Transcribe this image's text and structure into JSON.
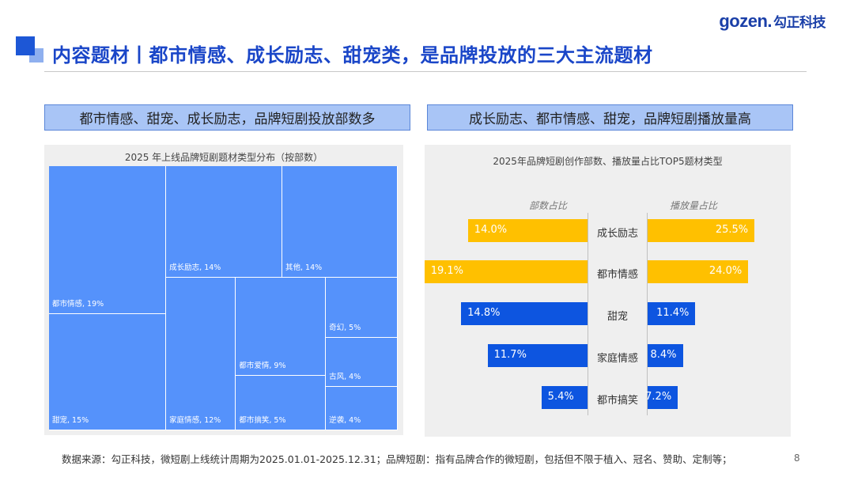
{
  "header": {
    "logo_main": "gozen.",
    "logo_cn": "勾正科技",
    "title": "内容题材丨都市情感、成长励志、甜宠类，是品牌投放的三大主流题材"
  },
  "left_heading": "都市情感、甜宠、成长励志，品牌短剧投放部数多",
  "right_heading": "成长励志、都市情感、甜宠，品牌短剧播放量高",
  "colors": {
    "treemap": "#5592fb",
    "bar_yellow": "#ffc000",
    "bar_blue": "#0d55e0",
    "title_blue": "#1a46c8"
  },
  "chart_data": [
    {
      "type": "treemap",
      "title": "2025 年上线品牌短剧题材类型分布（按部数）",
      "items": [
        {
          "label": "都市情感, 19%",
          "name": "都市情感",
          "value": 19
        },
        {
          "label": "甜宠, 15%",
          "name": "甜宠",
          "value": 15
        },
        {
          "label": "成长励志, 14%",
          "name": "成长励志",
          "value": 14
        },
        {
          "label": "其他, 14%",
          "name": "其他",
          "value": 14
        },
        {
          "label": "家庭情感, 12%",
          "name": "家庭情感",
          "value": 12
        },
        {
          "label": "都市爱情, 9%",
          "name": "都市爱情",
          "value": 9
        },
        {
          "label": "都市搞笑, 5%",
          "name": "都市搞笑",
          "value": 5
        },
        {
          "label": "奇幻, 5%",
          "name": "奇幻",
          "value": 5
        },
        {
          "label": "古风, 4%",
          "name": "古风",
          "value": 4
        },
        {
          "label": "逆袭, 4%",
          "name": "逆袭",
          "value": 4
        }
      ]
    },
    {
      "type": "bar",
      "title": "2025年品牌短剧创作部数、播放量占比TOP5题材类型",
      "left_axis_label": "部数占比",
      "right_axis_label": "播放量占比",
      "categories": [
        "成长励志",
        "都市情感",
        "甜宠",
        "家庭情感",
        "都市搞笑"
      ],
      "series": [
        {
          "name": "部数占比",
          "values": [
            14.0,
            19.1,
            14.8,
            11.7,
            5.4
          ],
          "labels": [
            "14.0%",
            "19.1%",
            "14.8%",
            "11.7%",
            "5.4%"
          ]
        },
        {
          "name": "播放量占比",
          "values": [
            25.5,
            24.0,
            11.4,
            8.4,
            7.2
          ],
          "labels": [
            "25.5%",
            "24.0%",
            "11.4%",
            "8.4%",
            "7.2%"
          ]
        }
      ],
      "highlight_top": 2
    }
  ],
  "footer": {
    "source": "数据来源：勾正科技，微短剧上线统计周期为2025.01.01-2025.12.31；品牌短剧：指有品牌合作的微短剧，包括但不限于植入、冠名、赞助、定制等；",
    "page_number": "8"
  }
}
